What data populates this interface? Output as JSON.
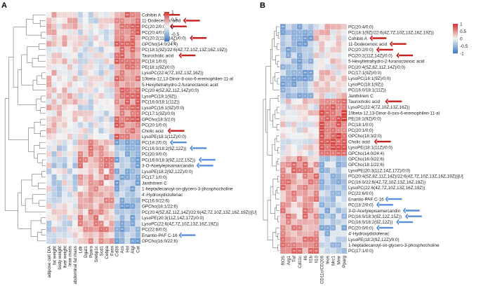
{
  "panels": [
    "A",
    "B"
  ],
  "chart_data": [
    {
      "type": "heatmap",
      "panel": "A",
      "columns": [
        "adipose cell DIA",
        "fat weight",
        "body weight",
        "liver weight",
        "lean mass",
        "abdominal fat mass",
        "Ldlr",
        "Dgat1",
        "Ppara",
        "Srebp1c",
        "Scd1",
        "Cebpa",
        "Fasn",
        "Cd36",
        "Acs",
        "Hsl",
        "Atgl",
        "Cat"
      ],
      "rows": [
        "Cohibin A",
        "11-Dodecenoic acid",
        "PC(20:2/0:0)",
        "PC(20:4/0:0)",
        "PC(20:2(11Z,14Z)/0:0)",
        "GPCho(14:0/24:4)",
        "PC(18:1(9Z)/22:6(4Z,7Z,10Z,13Z,16Z,19Z))",
        "Taurocholic acid",
        "PC(18:1/0:0)",
        "PE(18:1(9Z)/0:0)",
        "LysoPC(22:4(7Z,10Z,13Z,16Z))",
        "10beta-12,13-Dinor-8-oxo-6-eremophilen-11-al",
        "5-Hexyltetrahydro-2-furanoctanoic acid",
        "PC(20:4(5Z,8Z,11Z,14Z)/0:0)",
        "LysoPC(18:1(9Z))",
        "PC(16:0/18:1(11Z))",
        "LysoPC(16:1(9Z)/0:0)",
        "PC(17:1(9Z)/0:0)",
        "GPCho(18:3/2:0)",
        "PC(20:1/0:0)",
        "Cholic acid",
        "LysoPE(18:1(11Z)/0:0)",
        "PC(18:2/0:0)",
        "PC(16:0/18:2(9Z,12Z))",
        "PC(20:0/0:0)",
        "PC(16:0/18:3(9Z,12Z,15Z))",
        "3-O-Acetylepisamarcandin",
        "LysoPE(18:2(9Z,12Z)/0:0)",
        "PC(17:1/0:0)",
        "Janthitrem C",
        "1-heptadecanoyl-sn-glycero-3-phosphocholine",
        "4'-Hydroxydiclofenac",
        "PC(16:0/22:6)",
        "GPCho(18:1/22:6)",
        "PC(20:4(5Z,8Z,11Z,14Z)/22:6(4Z,7Z,10Z,13Z,16Z,19Z))[U]",
        "LysoPE(20:3(11Z,14Z,17Z)/0:0)",
        "LysoPC(22:6(4Z,7Z,10Z,13Z,16Z,19Z))",
        "PC(22:6/0:0)",
        "Enantio-PAF C-16",
        "GPCho(16:0/22:6)"
      ],
      "highlighted_rows": {
        "red": [
          "Cohibin A",
          "11-Dodecenoic acid",
          "PC(20:2/0:0)",
          "PC(20:2(11Z,14Z)/0:0)",
          "Taurocholic acid",
          "Cholic acid"
        ],
        "blue": [
          "PC(18:2/0:0)",
          "PC(16:0/18:2(9Z,12Z))",
          "PC(16:0/18:3(9Z,12Z,15Z))",
          "3-O-Acetylepisamarcandin",
          "Enantio-PAF C-16"
        ]
      },
      "color_scale": {
        "min": -1,
        "max": 1,
        "ticks": [
          "1",
          "0.5",
          "0",
          "-0.5",
          "-1"
        ],
        "colors": {
          "neg": "#3b78c2",
          "mid": "#f4f4f4",
          "pos": "#d2302c"
        }
      },
      "significance_marks": "asterisks",
      "dendrogram": "rows",
      "pattern_note": "rows 0-21 positive with right-hand columns; rows 22-39 negative with right-hand columns and positive with middle columns"
    },
    {
      "type": "heatmap",
      "panel": "B",
      "columns": [
        "ROS",
        "Arg1",
        "Tnf",
        "Cd11c",
        "Il6",
        "Il1b",
        "Il10",
        "CD11c/CD206",
        "Inos",
        "Mrc1",
        "Mmr",
        "Pparg"
      ],
      "rows": [
        "PC(20:4/0:0)",
        "PC(18:1(9Z)/22:6(4Z,7Z,10Z,13Z,16Z,19Z))",
        "Cohibin A",
        "11-Dodecenoic acid",
        "PC(20:2/0:0)",
        "PC(20:2(11Z,14Z)/0:0)",
        "5-Hexyltetrahydro-2-furanoctanoic acid",
        "PC(20:4(5Z,8Z,11Z,14Z)/0:0)",
        "PC(17:1(9Z)/0:0)",
        "LysoPC(16:1(9Z)/0:0)",
        "LysoPC(18:1(9Z))",
        "PC(16:0/18:1(11Z))",
        "Janthitrem C",
        "Taurocholic acid",
        "LysoPC(22:4(7Z,10Z,13Z,16Z))",
        "10beta-12,13-Dinor-8-oxo-6-eremophilen-11-al",
        "PE(18:1(9Z)/0:0)",
        "PC(18:1/0:0)",
        "PC(20:1/0:0)",
        "GPCho(18:3/2:0)",
        "Cholic acid",
        "LysoPE(18:1(11Z)/0:0)",
        "GPCho(14:0/24:4)",
        "GPCho(16:0/22:6)",
        "GPCho(18:1/22:6)",
        "LysoPE(20:3(11Z,14Z,17Z)/0:0)",
        "PC(20:4(5Z,8Z,11Z,14Z)/22:6(4Z,7Z,10Z,13Z,16Z,19Z))[U]",
        "PC(16:0/22:6(4Z,7Z,10Z,13Z,16Z,19Z))",
        "LysoPC(22:6(4Z,7Z,10Z,13Z,16Z,19Z))",
        "PC(22:6/0:0)",
        "Enantio-PAF C-16",
        "PC(18:2/0:0)",
        "3-O-Acetylepisamarcandin",
        "PC(16:0/18:3(9Z,12Z,15Z))",
        "PC(16:0/18:2(9Z,12Z))",
        "PC(20:0/0:0)",
        "4'-Hydroxydiclofenac",
        "LysoPE(18:2(9Z,12Z)/0:0)",
        "1-heptadecanoyl-sn-glycero-3-phosphocholine",
        "PC(17:1/0:0)"
      ],
      "highlighted_rows": {
        "red": [
          "Cohibin A",
          "11-Dodecenoic acid",
          "PC(20:2/0:0)",
          "PC(20:2(11Z,14Z)/0:0)",
          "Taurocholic acid",
          "Cholic acid"
        ],
        "blue": [
          "Enantio-PAF C-16",
          "PC(18:2/0:0)",
          "3-O-Acetylepisamarcandin",
          "PC(16:0/18:3(9Z,12Z,15Z))",
          "PC(16:0/18:2(9Z,12Z))",
          "PC(20:0/0:0)"
        ]
      },
      "color_scale": {
        "min": -1,
        "max": 1,
        "ticks": [
          "1",
          "0.5",
          "0",
          "-0.5",
          "-1"
        ],
        "colors": {
          "neg": "#3b78c2",
          "mid": "#f4f4f4",
          "pos": "#d2302c"
        }
      },
      "significance_marks": "asterisks",
      "dendrogram": "rows",
      "pattern_note": "rows 0-12 negative with left columns; rows 13-22 strongly positive with right-hand columns; rows 23-39 positive with left/middle columns"
    }
  ]
}
